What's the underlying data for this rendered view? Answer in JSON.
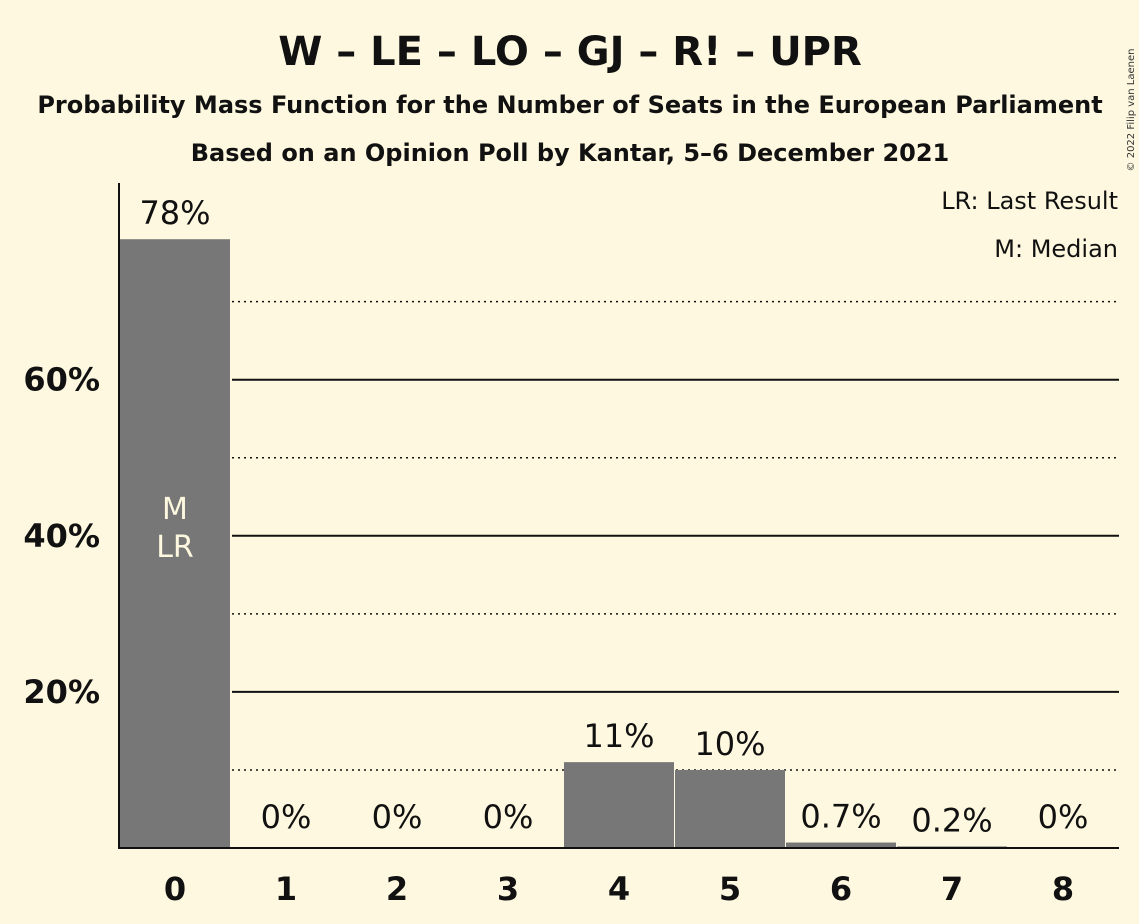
{
  "chart_data": {
    "type": "bar",
    "title": "W – LE – LO – GJ – R! – UPR",
    "subtitle": "Probability Mass Function for the Number of Seats in the European Parliament",
    "subtitle2": "Based on an Opinion Poll by Kantar, 5–6 December 2021",
    "categories": [
      "0",
      "1",
      "2",
      "3",
      "4",
      "5",
      "6",
      "7",
      "8"
    ],
    "values": [
      78,
      0,
      0,
      0,
      11,
      10,
      0.7,
      0.2,
      0
    ],
    "value_labels": [
      "78%",
      "0%",
      "0%",
      "0%",
      "11%",
      "10%",
      "0.7%",
      "0.2%",
      "0%"
    ],
    "ylim": [
      0,
      85
    ],
    "yticks": [
      {
        "value": 20,
        "label": "20%"
      },
      {
        "value": 40,
        "label": "40%"
      },
      {
        "value": 60,
        "label": "60%"
      }
    ],
    "minor_gridlines": [
      10,
      30,
      50,
      70
    ],
    "bar_markers": {
      "category": "0",
      "lines": [
        "M",
        "LR"
      ]
    },
    "legend": [
      "LR: Last Result",
      "M: Median"
    ],
    "legend_position": "top-right",
    "bar_color": "#777777",
    "background": "#fdf8df"
  },
  "copyright": "© 2022 Filip van Laenen"
}
